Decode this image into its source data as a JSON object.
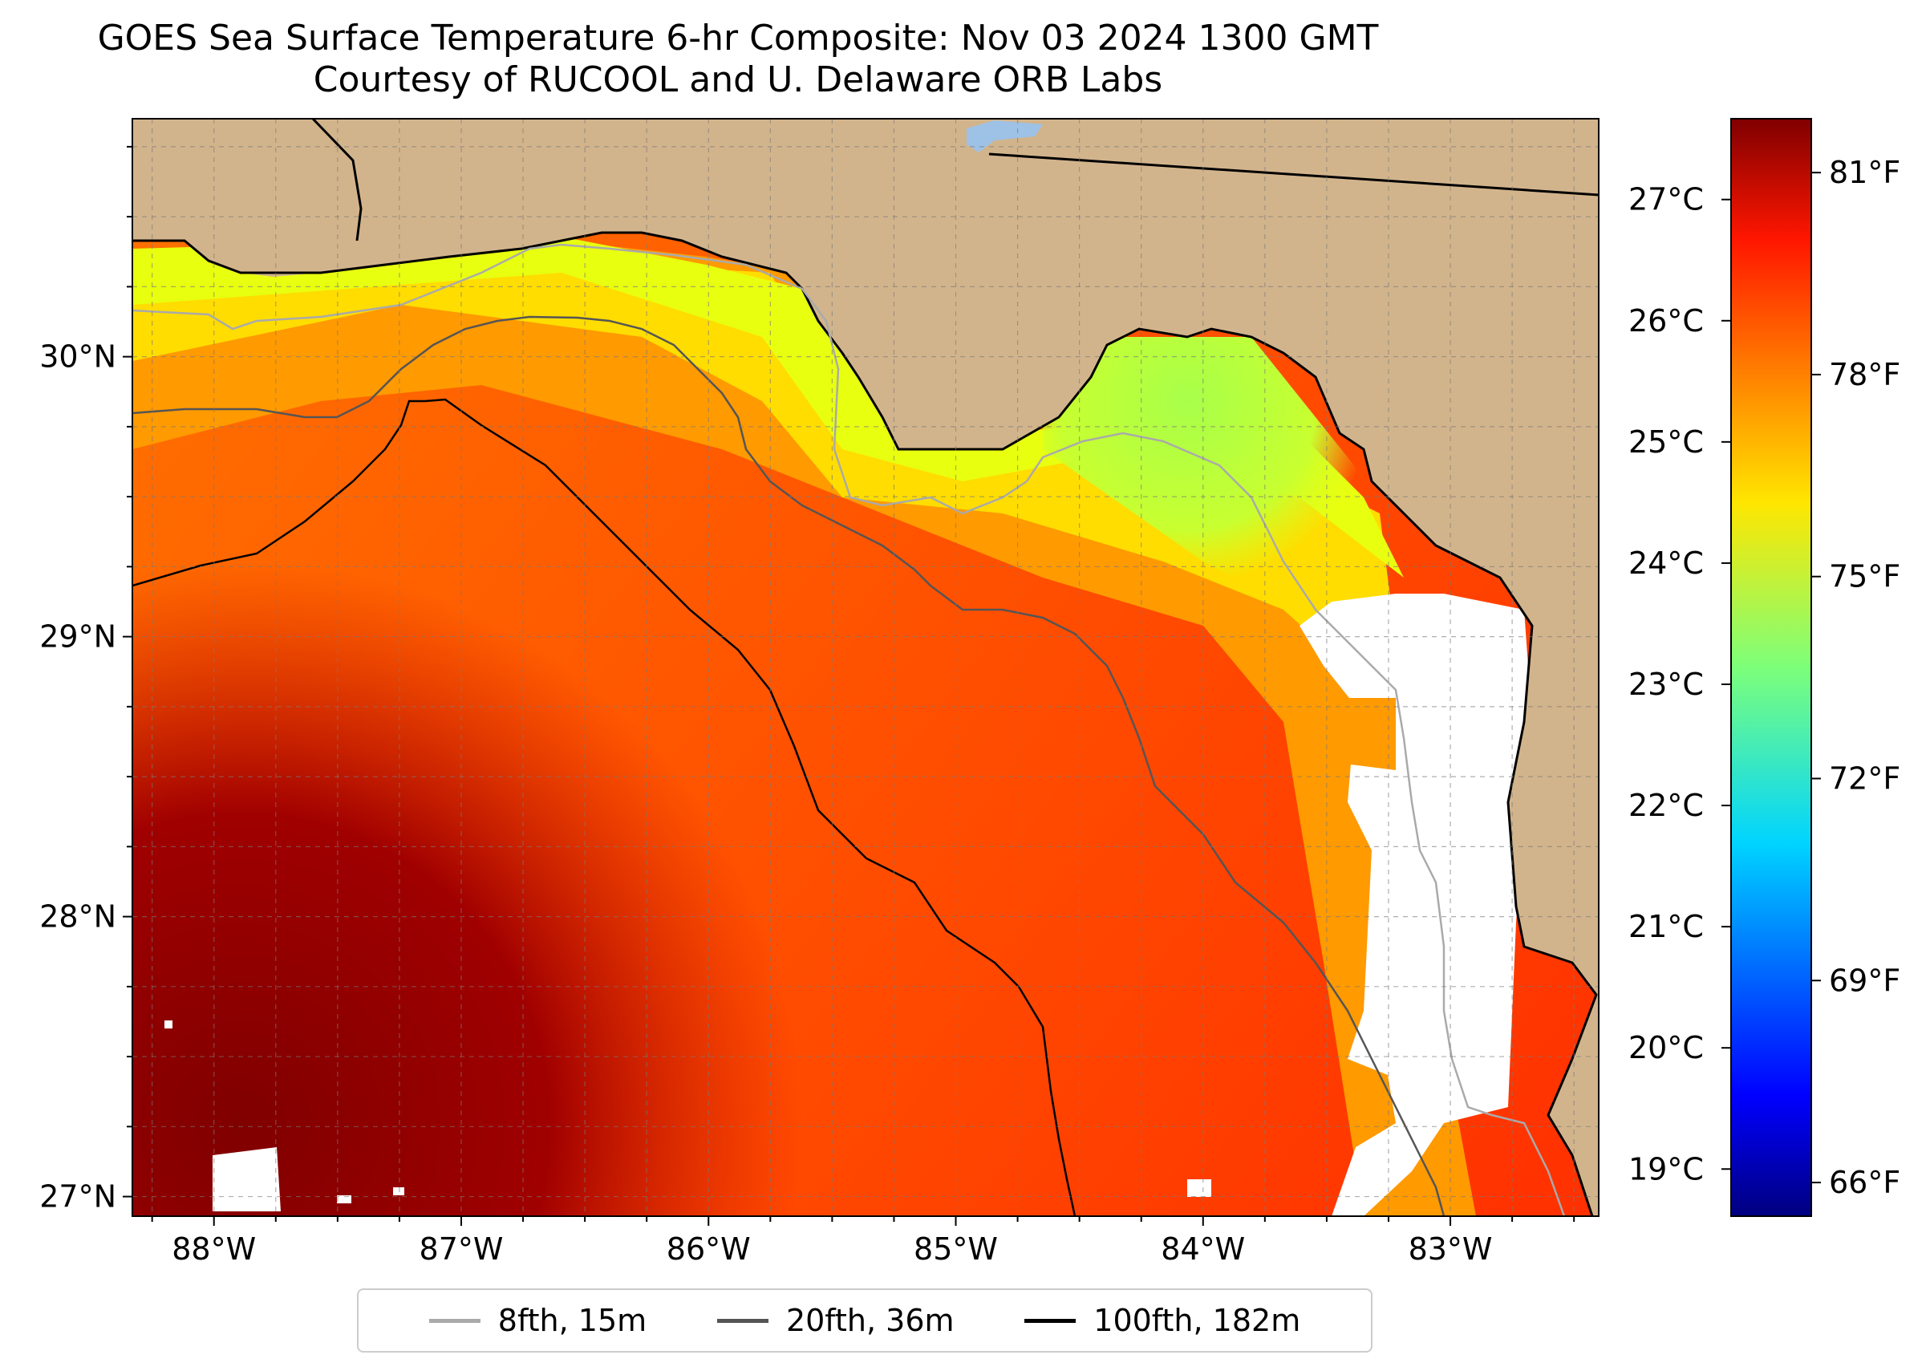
{
  "title": {
    "line1": "GOES Sea Surface Temperature 6-hr Composite: Nov 03 2024 1300 GMT",
    "line2": "Courtesy of RUCOOL and U. Delaware ORB Labs"
  },
  "map": {
    "extent": {
      "lon_min": -88.33,
      "lon_max": -82.4,
      "lat_min": 26.93,
      "lat_max": 30.85
    },
    "lon_ticks": [
      {
        "value": -88,
        "label": "88°W"
      },
      {
        "value": -87,
        "label": "87°W"
      },
      {
        "value": -86,
        "label": "86°W"
      },
      {
        "value": -85,
        "label": "85°W"
      },
      {
        "value": -84,
        "label": "84°W"
      },
      {
        "value": -83,
        "label": "83°W"
      }
    ],
    "lat_ticks": [
      {
        "value": 27,
        "label": "27°N"
      },
      {
        "value": 28,
        "label": "28°N"
      },
      {
        "value": 29,
        "label": "29°N"
      },
      {
        "value": 30,
        "label": "30°N"
      }
    ],
    "land_color": "#d2b48c",
    "water_body_color": "#9ec1e6",
    "no_data_color": "#ffffff",
    "coastline_color": "#000000",
    "grid": true
  },
  "colorbar": {
    "colormap": "jet",
    "celsius_ticks": [
      {
        "value": 27,
        "label": "27°C"
      },
      {
        "value": 26,
        "label": "26°C"
      },
      {
        "value": 25,
        "label": "25°C"
      },
      {
        "value": 24,
        "label": "24°C"
      },
      {
        "value": 23,
        "label": "23°C"
      },
      {
        "value": 22,
        "label": "22°C"
      },
      {
        "value": 21,
        "label": "21°C"
      },
      {
        "value": 20,
        "label": "20°C"
      },
      {
        "value": 19,
        "label": "19°C"
      }
    ],
    "fahrenheit_ticks": [
      {
        "value": 81,
        "label": "81°F"
      },
      {
        "value": 78,
        "label": "78°F"
      },
      {
        "value": 75,
        "label": "75°F"
      },
      {
        "value": 72,
        "label": "72°F"
      },
      {
        "value": 69,
        "label": "69°F"
      },
      {
        "value": 66,
        "label": "66°F"
      }
    ],
    "range_f": [
      65.5,
      81.8
    ]
  },
  "legend": {
    "position": "bottom",
    "items": [
      {
        "label": "8fth, 15m",
        "color": "#aaaaaa"
      },
      {
        "label": "20fth, 36m",
        "color": "#555555"
      },
      {
        "label": "100fth, 182m",
        "color": "#000000"
      }
    ]
  }
}
